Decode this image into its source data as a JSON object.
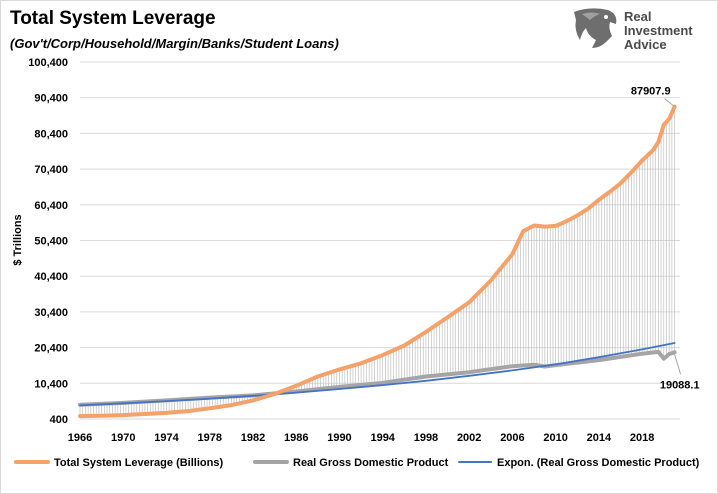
{
  "header": {
    "title": "Total System Leverage",
    "subtitle": "(Gov't/Corp/Household/Margin/Banks/Student Loans)"
  },
  "logo": {
    "line1": "Real",
    "line2": "Investment",
    "line3": "Advice"
  },
  "colors": {
    "leverage": "#F4A16A",
    "leverage_stroke": "#ED7D31",
    "gdp": "#A5A5A5",
    "trend": "#4472C4",
    "droplines": "#BFBFBF",
    "grid": "#D9D9D9"
  },
  "chart_data": {
    "type": "line",
    "ylabel": "$ Trillions",
    "ylim": [
      400,
      100400
    ],
    "yticks": [
      "400",
      "10,400",
      "20,400",
      "30,400",
      "40,400",
      "50,400",
      "60,400",
      "70,400",
      "80,400",
      "90,400",
      "100,400"
    ],
    "xlim": [
      1966,
      2021.5
    ],
    "xticks": [
      "1966",
      "1970",
      "1974",
      "1978",
      "1982",
      "1986",
      "1990",
      "1994",
      "1998",
      "2002",
      "2006",
      "2010",
      "2014",
      "2018"
    ],
    "grid": "horizontal",
    "legend_position": "bottom",
    "series": [
      {
        "name": "Total System Leverage (Billions)",
        "x": [
          1966,
          1968,
          1970,
          1972,
          1974,
          1976,
          1978,
          1980,
          1982,
          1984,
          1986,
          1988,
          1990,
          1992,
          1994,
          1996,
          1998,
          2000,
          2002,
          2004,
          2006,
          2007,
          2008,
          2009,
          2010,
          2011,
          2012,
          2013,
          2014,
          2015,
          2016,
          2017,
          2018,
          2019,
          2019.5,
          2020,
          2020.5,
          2021
        ],
        "y": [
          1200,
          1300,
          1500,
          1800,
          2100,
          2600,
          3400,
          4300,
          5600,
          7400,
          9700,
          12300,
          14300,
          16000,
          18300,
          21000,
          24800,
          28900,
          33100,
          39200,
          46600,
          53000,
          54600,
          54300,
          54500,
          55800,
          57400,
          59300,
          61800,
          64000,
          66400,
          69500,
          72800,
          75700,
          78000,
          82800,
          84500,
          87907.9
        ]
      },
      {
        "name": "Real Gross Domestic Product",
        "x": [
          1966,
          1970,
          1974,
          1978,
          1982,
          1986,
          1990,
          1994,
          1998,
          2002,
          2006,
          2008,
          2009,
          2010,
          2014,
          2018,
          2019.5,
          2020,
          2020.5,
          2021
        ],
        "y": [
          4400,
          4900,
          5600,
          6400,
          7000,
          8100,
          9400,
          10500,
          12300,
          13500,
          15200,
          15600,
          15100,
          15500,
          16900,
          18700,
          19200,
          17300,
          18600,
          19088.1
        ]
      },
      {
        "name": "Expon. (Real Gross Domestic Product)",
        "x": [
          1966,
          1970,
          1974,
          1978,
          1982,
          1986,
          1990,
          1994,
          1998,
          2002,
          2006,
          2010,
          2014,
          2018,
          2021
        ],
        "y": [
          4200,
          4800,
          5400,
          6100,
          6900,
          7800,
          8800,
          9900,
          11100,
          12500,
          14000,
          15700,
          17700,
          19900,
          21700
        ]
      }
    ],
    "annotations": [
      {
        "text": "87907.9",
        "x": 2021,
        "y": 87907.9
      },
      {
        "text": "19088.1",
        "x": 2021,
        "y": 19088.1
      }
    ]
  }
}
